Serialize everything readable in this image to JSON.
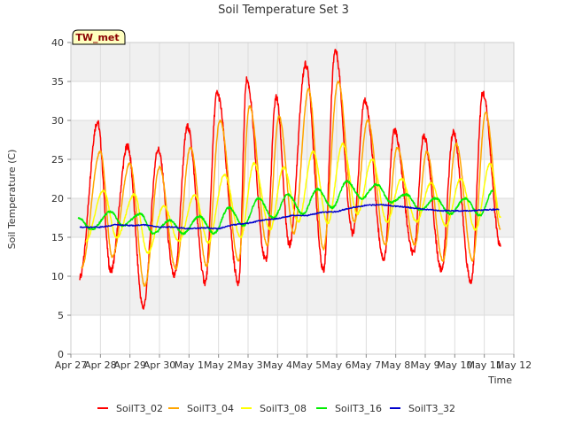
{
  "chart_data": {
    "type": "line",
    "title": "Soil Temperature Set 3",
    "xlabel": "Time",
    "ylabel": "Soil Temperature (C)",
    "badge": "TW_met",
    "x_unit": "days",
    "xlim": [
      0,
      15
    ],
    "ylim": [
      0,
      40
    ],
    "yticks": [
      0,
      5,
      10,
      15,
      20,
      25,
      30,
      35,
      40
    ],
    "xtick_labels": [
      "Apr 27",
      "Apr 28",
      "Apr 29",
      "Apr 30",
      "May 1",
      "May 2",
      "May 3",
      "May 4",
      "May 5",
      "May 6",
      "May 7",
      "May 8",
      "May 9",
      "May 10",
      "May 11",
      "May 12"
    ],
    "legend_position": "bottom",
    "grid": true,
    "series": [
      {
        "name": "SoilT3_02",
        "color": "#ff0000",
        "mins": [
          [
            0.3,
            9.8
          ],
          [
            1.35,
            10.7
          ],
          [
            2.45,
            6.0
          ],
          [
            3.5,
            10.0
          ],
          [
            4.55,
            9.2
          ],
          [
            5.68,
            9.2
          ],
          [
            6.6,
            12.0
          ],
          [
            7.4,
            14.0
          ],
          [
            8.55,
            10.8
          ],
          [
            9.55,
            15.5
          ],
          [
            10.6,
            12.2
          ],
          [
            11.6,
            12.9
          ],
          [
            12.55,
            10.8
          ],
          [
            13.55,
            9.2
          ],
          [
            14.55,
            13.8
          ]
        ],
        "maxs": [
          [
            0.9,
            29.8
          ],
          [
            1.92,
            26.7
          ],
          [
            2.95,
            26.3
          ],
          [
            3.95,
            29.2
          ],
          [
            4.95,
            33.5
          ],
          [
            5.95,
            35.2
          ],
          [
            6.95,
            33.0
          ],
          [
            7.95,
            37.2
          ],
          [
            8.95,
            39.0
          ],
          [
            9.95,
            32.5
          ],
          [
            10.95,
            28.7
          ],
          [
            11.95,
            28.0
          ],
          [
            12.95,
            28.5
          ],
          [
            13.95,
            33.5
          ]
        ]
      },
      {
        "name": "SoilT3_04",
        "color": "#ffa500",
        "mins": [
          [
            0.35,
            11.0
          ],
          [
            1.4,
            12.5
          ],
          [
            2.5,
            8.8
          ],
          [
            3.55,
            11.0
          ],
          [
            4.6,
            11.3
          ],
          [
            5.68,
            12.0
          ],
          [
            6.65,
            14.0
          ],
          [
            7.55,
            15.5
          ],
          [
            8.55,
            13.5
          ],
          [
            9.6,
            17.0
          ],
          [
            10.65,
            14.0
          ],
          [
            11.65,
            14.0
          ],
          [
            12.6,
            12.0
          ],
          [
            13.6,
            12.0
          ],
          [
            14.55,
            16.0
          ]
        ],
        "maxs": [
          [
            1.0,
            26.0
          ],
          [
            2.0,
            24.5
          ],
          [
            3.0,
            24.0
          ],
          [
            4.05,
            26.5
          ],
          [
            5.05,
            30.0
          ],
          [
            6.05,
            31.8
          ],
          [
            7.05,
            30.5
          ],
          [
            8.05,
            34.0
          ],
          [
            9.05,
            35.0
          ],
          [
            10.05,
            30.0
          ],
          [
            11.05,
            26.5
          ],
          [
            12.05,
            26.0
          ],
          [
            13.05,
            27.0
          ],
          [
            14.05,
            31.0
          ]
        ]
      },
      {
        "name": "SoilT3_08",
        "color": "#ffff00",
        "mins": [
          [
            0.5,
            14.5
          ],
          [
            1.55,
            15.0
          ],
          [
            2.6,
            13.0
          ],
          [
            3.65,
            14.5
          ],
          [
            4.65,
            14.3
          ],
          [
            5.75,
            15.0
          ],
          [
            6.75,
            16.0
          ],
          [
            7.7,
            17.0
          ],
          [
            8.7,
            16.8
          ],
          [
            9.7,
            18.0
          ],
          [
            10.7,
            17.0
          ],
          [
            11.7,
            17.0
          ],
          [
            12.7,
            16.5
          ],
          [
            13.7,
            16.0
          ],
          [
            14.55,
            17.5
          ]
        ],
        "maxs": [
          [
            1.1,
            21.0
          ],
          [
            2.15,
            20.5
          ],
          [
            3.15,
            19.0
          ],
          [
            4.2,
            20.5
          ],
          [
            5.2,
            23.0
          ],
          [
            6.2,
            24.5
          ],
          [
            7.2,
            24.0
          ],
          [
            8.2,
            26.0
          ],
          [
            9.2,
            27.0
          ],
          [
            10.2,
            25.0
          ],
          [
            11.2,
            22.5
          ],
          [
            12.2,
            22.0
          ],
          [
            13.2,
            22.5
          ],
          [
            14.2,
            24.5
          ]
        ]
      },
      {
        "name": "SoilT3_16",
        "color": "#00ee00",
        "mins": [
          [
            0.7,
            16.0
          ],
          [
            1.75,
            16.5
          ],
          [
            2.8,
            15.5
          ],
          [
            3.8,
            15.5
          ],
          [
            4.85,
            15.5
          ],
          [
            5.85,
            16.5
          ],
          [
            6.85,
            17.5
          ],
          [
            7.85,
            18.0
          ],
          [
            8.85,
            18.8
          ],
          [
            9.85,
            20.0
          ],
          [
            10.85,
            19.5
          ],
          [
            11.85,
            18.5
          ],
          [
            12.85,
            18.0
          ],
          [
            13.85,
            17.8
          ]
        ],
        "maxs": [
          [
            0.25,
            17.5
          ],
          [
            1.35,
            18.3
          ],
          [
            2.35,
            18.0
          ],
          [
            3.35,
            17.2
          ],
          [
            4.35,
            17.7
          ],
          [
            5.35,
            18.8
          ],
          [
            6.35,
            20.0
          ],
          [
            7.35,
            20.5
          ],
          [
            8.35,
            21.2
          ],
          [
            9.35,
            22.2
          ],
          [
            10.35,
            21.8
          ],
          [
            11.35,
            20.5
          ],
          [
            12.35,
            20.0
          ],
          [
            13.35,
            20.0
          ],
          [
            14.3,
            21.0
          ]
        ]
      },
      {
        "name": "SoilT3_32",
        "color": "#0000cc",
        "points": [
          [
            0.3,
            16.3
          ],
          [
            1.0,
            16.3
          ],
          [
            1.5,
            16.6
          ],
          [
            2.0,
            16.5
          ],
          [
            2.5,
            16.6
          ],
          [
            3.0,
            16.3
          ],
          [
            3.5,
            16.3
          ],
          [
            4.0,
            16.1
          ],
          [
            4.5,
            16.2
          ],
          [
            5.0,
            16.1
          ],
          [
            5.5,
            16.6
          ],
          [
            6.0,
            16.8
          ],
          [
            6.5,
            17.2
          ],
          [
            7.0,
            17.4
          ],
          [
            7.5,
            17.8
          ],
          [
            8.0,
            17.8
          ],
          [
            8.5,
            18.2
          ],
          [
            9.0,
            18.3
          ],
          [
            9.5,
            18.8
          ],
          [
            10.0,
            19.1
          ],
          [
            10.5,
            19.2
          ],
          [
            11.0,
            19.0
          ],
          [
            11.5,
            18.8
          ],
          [
            12.0,
            18.6
          ],
          [
            12.5,
            18.4
          ],
          [
            13.0,
            18.4
          ],
          [
            13.5,
            18.4
          ],
          [
            14.0,
            18.5
          ],
          [
            14.5,
            18.6
          ]
        ]
      }
    ]
  }
}
